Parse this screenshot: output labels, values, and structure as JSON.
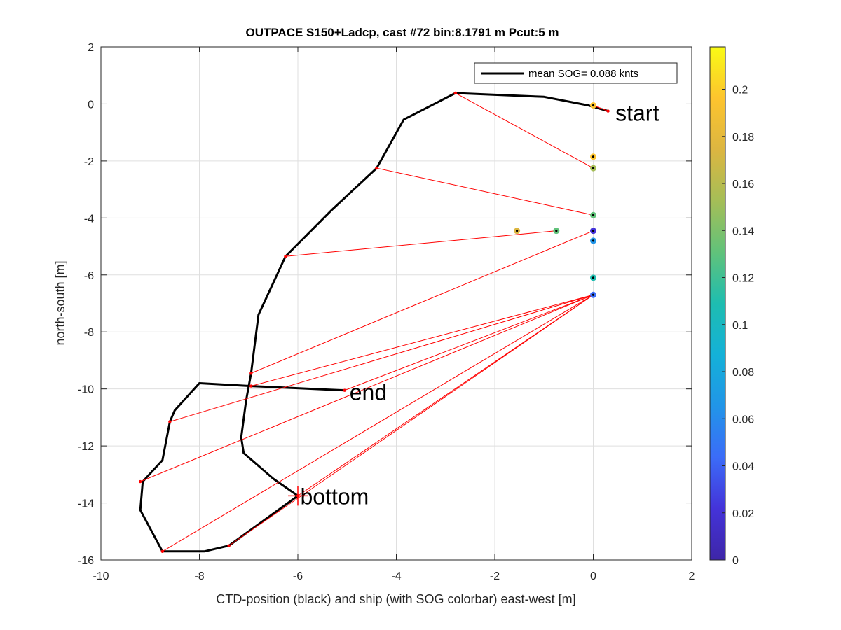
{
  "chart_data": [
    {
      "type": "line",
      "title": "OUTPACE S150+Ladcp, cast #72 bin:8.1791 m  Pcut:5 m",
      "xlabel": "CTD-position (black) and ship (with SOG colorbar) east-west [m]",
      "ylabel": "north-south [m]",
      "xlim": [
        -10,
        2
      ],
      "ylim": [
        -16,
        2
      ],
      "xticks": [
        "-10",
        "-8",
        "-6",
        "-4",
        "-2",
        "0",
        "2"
      ],
      "yticks": [
        "-16",
        "-14",
        "-12",
        "-10",
        "-8",
        "-6",
        "-4",
        "-2",
        "0",
        "2"
      ],
      "grid": true,
      "legend": {
        "position": "top-right",
        "entries": [
          "mean SOG=  0.088 knts"
        ]
      },
      "annotations": [
        {
          "text": "start",
          "x": 0.45,
          "y": -0.3
        },
        {
          "text": "end",
          "x": -4.95,
          "y": -10.1
        },
        {
          "text": "bottom",
          "x": -5.95,
          "y": -13.75
        }
      ],
      "series": [
        {
          "role": "ctd-track",
          "color": "#000000",
          "x": [
            0.3,
            -0.1,
            -1.0,
            -2.8,
            -3.85,
            -4.4,
            -5.3,
            -6.25,
            -6.8,
            -6.95,
            -7.05,
            -7.15,
            -7.1,
            -6.5,
            -6.0,
            -7.4,
            -7.9,
            -8.75,
            -9.2,
            -9.15,
            -8.75,
            -8.6,
            -8.5,
            -8.0,
            -6.95,
            -5.05
          ],
          "y": [
            -0.25,
            -0.05,
            0.25,
            0.38,
            -0.55,
            -2.25,
            -3.7,
            -5.35,
            -7.4,
            -9.45,
            -10.4,
            -11.7,
            -12.25,
            -13.15,
            -13.75,
            -15.5,
            -15.7,
            -15.7,
            -14.25,
            -13.25,
            -12.5,
            -11.15,
            -10.75,
            -9.8,
            -9.9,
            -10.05
          ]
        },
        {
          "role": "ctd-ship-connectors",
          "color": "#ff0000",
          "segments": [
            [
              [
                0.3,
                -0.25
              ],
              [
                0.0,
                -0.05
              ]
            ],
            [
              [
                -2.8,
                0.38
              ],
              [
                0.0,
                -2.25
              ]
            ],
            [
              [
                -4.4,
                -2.25
              ],
              [
                0.0,
                -3.9
              ]
            ],
            [
              [
                -6.25,
                -5.35
              ],
              [
                -0.75,
                -4.45
              ]
            ],
            [
              [
                -6.95,
                -9.45
              ],
              [
                0.0,
                -4.45
              ]
            ],
            [
              [
                -8.6,
                -11.15
              ],
              [
                0.0,
                -6.7
              ]
            ],
            [
              [
                -9.2,
                -13.25
              ],
              [
                0.0,
                -6.7
              ]
            ],
            [
              [
                -8.75,
                -15.7
              ],
              [
                0.0,
                -6.7
              ]
            ],
            [
              [
                -7.4,
                -15.5
              ],
              [
                0.0,
                -6.7
              ]
            ],
            [
              [
                -5.05,
                -10.05
              ],
              [
                0.0,
                -6.7
              ]
            ],
            [
              [
                -6.95,
                -9.9
              ],
              [
                0.0,
                -6.7
              ]
            ],
            [
              [
                -6.0,
                -13.75
              ],
              [
                0.0,
                -6.7
              ]
            ]
          ]
        },
        {
          "role": "ship-positions",
          "colorbar": "SOG",
          "points": [
            {
              "x": 0.0,
              "y": -0.05,
              "sog": 0.2
            },
            {
              "x": 0.0,
              "y": -1.85,
              "sog": 0.19
            },
            {
              "x": 0.0,
              "y": -2.25,
              "sog": 0.15
            },
            {
              "x": 0.0,
              "y": -3.9,
              "sog": 0.13
            },
            {
              "x": -1.55,
              "y": -4.45,
              "sog": 0.17
            },
            {
              "x": -0.75,
              "y": -4.45,
              "sog": 0.14
            },
            {
              "x": 0.0,
              "y": -4.45,
              "sog": 0.02
            },
            {
              "x": 0.0,
              "y": -4.8,
              "sog": 0.06
            },
            {
              "x": 0.0,
              "y": -6.1,
              "sog": 0.11
            },
            {
              "x": 0.0,
              "y": -6.7,
              "sog": 0.05
            }
          ]
        }
      ]
    },
    {
      "type": "heatmap",
      "role": "colorbar",
      "range": [
        0,
        0.218
      ],
      "ticks": [
        "0",
        "0.02",
        "0.04",
        "0.06",
        "0.08",
        "0.1",
        "0.12",
        "0.14",
        "0.16",
        "0.18",
        "0.2"
      ],
      "colormap": [
        "#3e26a8",
        "#4433d9",
        "#3b6cf8",
        "#2195e8",
        "#14b1d8",
        "#1ebdb0",
        "#61c27a",
        "#a5be57",
        "#dcb641",
        "#fdc42e",
        "#f9fb15"
      ]
    }
  ]
}
